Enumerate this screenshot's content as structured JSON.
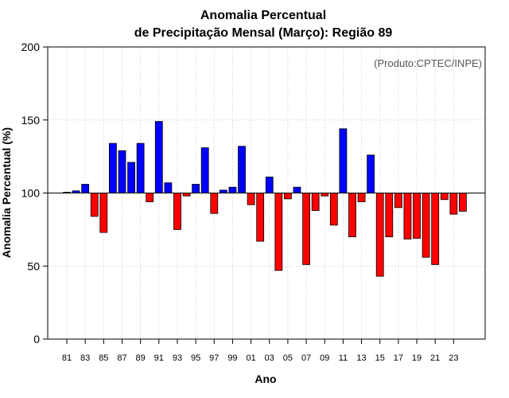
{
  "chart_data": {
    "type": "bar",
    "title_line1": "Anomalia Percentual",
    "title_line2": "de Precipitação Mensal (Março): Região 89",
    "xlabel": "Ano",
    "ylabel": "Anomalia Percentual (%)",
    "credit": "(Produto:CPTEC/INPE)",
    "baseline": 100,
    "ylim": [
      0,
      200
    ],
    "yticks": [
      0,
      50,
      100,
      150,
      200
    ],
    "colors": {
      "above": "#0000ff",
      "below": "#ff0000",
      "outline": "#000000"
    },
    "categories": [
      "81",
      "82",
      "83",
      "84",
      "85",
      "86",
      "87",
      "88",
      "89",
      "90",
      "91",
      "92",
      "93",
      "94",
      "95",
      "96",
      "97",
      "98",
      "99",
      "00",
      "01",
      "02",
      "03",
      "04",
      "05",
      "06",
      "07",
      "08",
      "09",
      "10",
      "11",
      "12",
      "13",
      "14",
      "15",
      "16",
      "17",
      "18",
      "19",
      "20",
      "21",
      "22",
      "23",
      "24"
    ],
    "xtick_labels": [
      "81",
      "83",
      "85",
      "87",
      "89",
      "91",
      "93",
      "95",
      "97",
      "99",
      "01",
      "03",
      "05",
      "07",
      "09",
      "11",
      "13",
      "15",
      "17",
      "19",
      "21",
      "23"
    ],
    "values": [
      100.5,
      101.5,
      106,
      84,
      73,
      134,
      129,
      121,
      134,
      94,
      149,
      107,
      75,
      98,
      106,
      131,
      86,
      102,
      104,
      132,
      92,
      67,
      111,
      47,
      96,
      104,
      51,
      88,
      98,
      78,
      144,
      70,
      94,
      126,
      43,
      70,
      90,
      68.5,
      69,
      56,
      51,
      95.5,
      85.5,
      87.5
    ]
  }
}
